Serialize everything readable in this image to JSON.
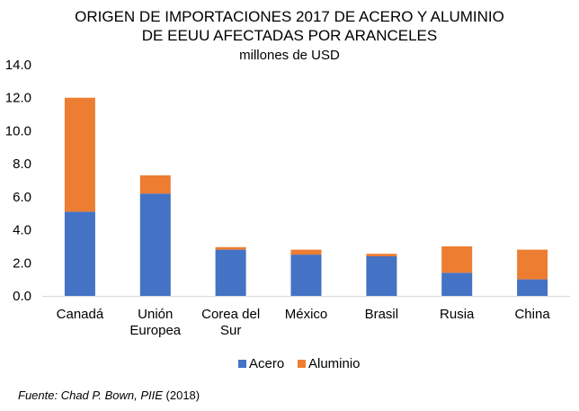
{
  "chart_data": {
    "type": "bar",
    "stacked": true,
    "title_lines": [
      "ORIGEN DE IMPORTACIONES 2017 DE ACERO Y ALUMINIO",
      "DE EEUU AFECTADAS POR ARANCELES"
    ],
    "subtitle": "millones de USD",
    "categories": [
      [
        "Canadá"
      ],
      [
        "Unión",
        "Europea"
      ],
      [
        "Corea del",
        "Sur"
      ],
      [
        "México"
      ],
      [
        "Brasil"
      ],
      [
        "Rusia"
      ],
      [
        "China"
      ]
    ],
    "series": [
      {
        "name": "Acero",
        "color": "#4472C4",
        "values": [
          5.1,
          6.2,
          2.8,
          2.5,
          2.4,
          1.4,
          1.0
        ]
      },
      {
        "name": "Aluminio",
        "color": "#ED7D31",
        "values": [
          6.9,
          1.1,
          0.15,
          0.3,
          0.15,
          1.6,
          1.8
        ]
      }
    ],
    "ylim": [
      0,
      14
    ],
    "yticks": [
      "0.0",
      "2.0",
      "4.0",
      "6.0",
      "8.0",
      "10.0",
      "12.0",
      "14.0"
    ],
    "grid": false,
    "legend_position": "bottom"
  },
  "source": {
    "prefix": "Fuente: Chad P. Bown, PIIE",
    "suffix": " (2018)"
  }
}
